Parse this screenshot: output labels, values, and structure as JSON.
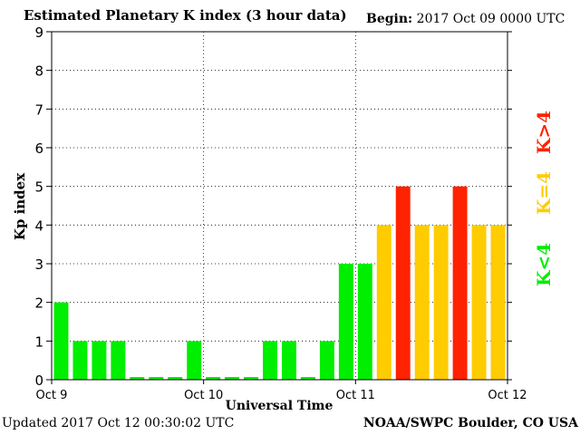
{
  "title": "Estimated Planetary K index (3 hour data)",
  "begin_label": "Begin:",
  "begin_value": "2017 Oct 09 0000 UTC",
  "updated": "Updated 2017 Oct 12 00:30:02 UTC",
  "credit": "NOAA/SWPC Boulder, CO USA",
  "chart_data": {
    "type": "bar",
    "xlabel": "Universal Time",
    "ylabel": "Kp index",
    "ylim": [
      0,
      9
    ],
    "yticks": [
      "0",
      "1",
      "2",
      "3",
      "4",
      "5",
      "6",
      "7",
      "8",
      "9"
    ],
    "day_labels": [
      "Oct 9",
      "Oct 10",
      "Oct 11",
      "Oct 12"
    ],
    "bars_per_day": 8,
    "values": [
      2,
      1,
      1,
      1,
      0.07,
      0.07,
      0.07,
      1,
      0.07,
      0.07,
      0.07,
      1,
      1,
      0.07,
      1,
      3,
      3,
      4,
      5,
      4,
      4,
      5,
      4,
      4
    ],
    "colors": {
      "below_4": "#00ee00",
      "equal_4": "#ffcc00",
      "above_4": "#ff2200"
    },
    "grid": "dotted",
    "legend": [
      {
        "label": "K<4",
        "color": "#00ee00"
      },
      {
        "label": "K=4",
        "color": "#ffcc00"
      },
      {
        "label": "K>4",
        "color": "#ff2200"
      }
    ]
  }
}
